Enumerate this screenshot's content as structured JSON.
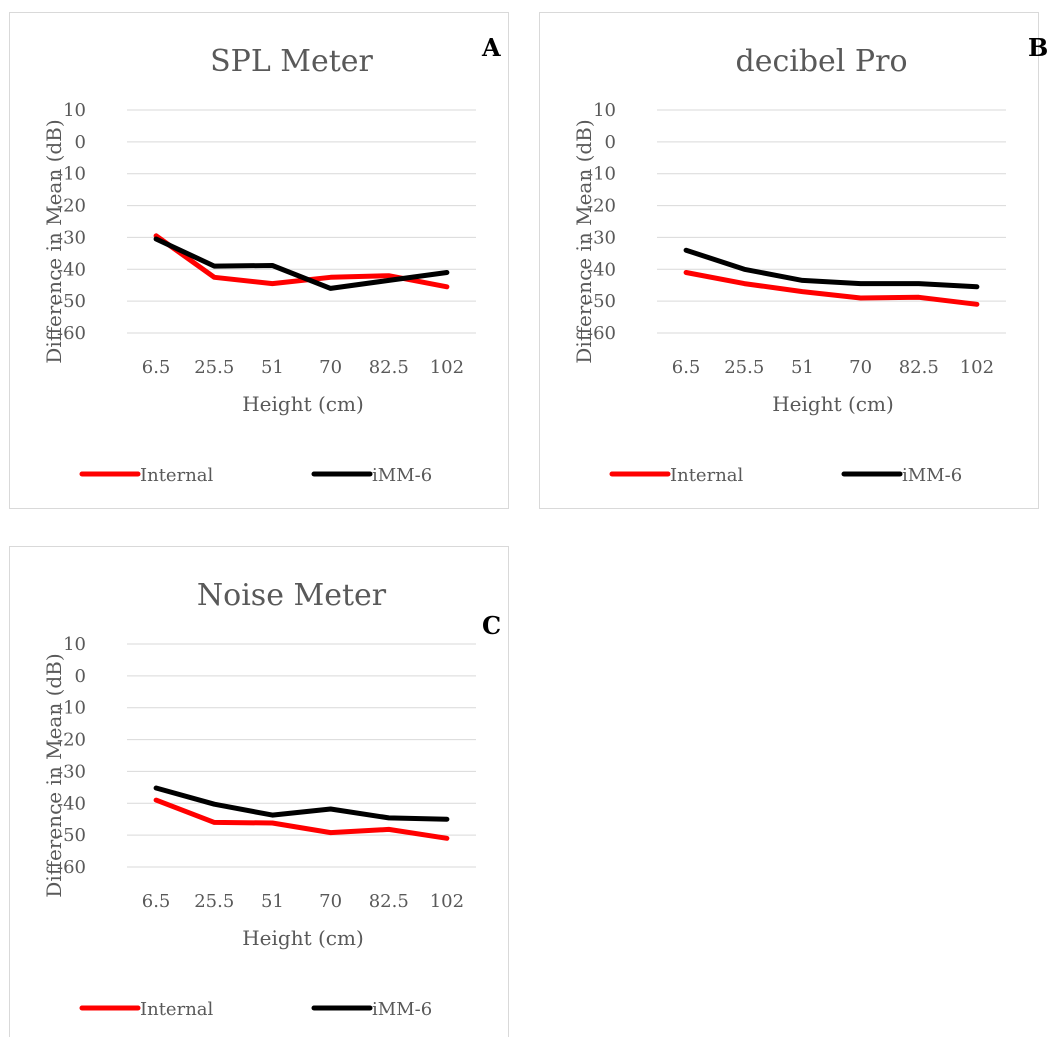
{
  "chart_data": [
    {
      "type": "line",
      "title": "SPL Meter",
      "panel_label": "A",
      "xlabel": "Height (cm)",
      "ylabel": "Difference in Mean (dB)",
      "categories": [
        "6.5",
        "25.5",
        "51",
        "70",
        "82.5",
        "102"
      ],
      "yticks": [
        10,
        0,
        -10,
        -20,
        -30,
        -40,
        -50,
        -60
      ],
      "ylim": [
        -60,
        10
      ],
      "grid": true,
      "legend_position": "bottom",
      "series": [
        {
          "name": "Internal",
          "color": "#ff0000",
          "values": [
            -29.5,
            -42.5,
            -44.5,
            -42.5,
            -42,
            -45.5
          ]
        },
        {
          "name": "iMM-6",
          "color": "#000000",
          "values": [
            -30.5,
            -39,
            -38.8,
            -46,
            -43.5,
            -41
          ]
        }
      ]
    },
    {
      "type": "line",
      "title": "decibel Pro",
      "panel_label": "B",
      "xlabel": "Height (cm)",
      "ylabel": "Difference in Mean (dB)",
      "categories": [
        "6.5",
        "25.5",
        "51",
        "70",
        "82.5",
        "102"
      ],
      "yticks": [
        10,
        0,
        -10,
        -20,
        -30,
        -40,
        -50,
        -60
      ],
      "ylim": [
        -60,
        10
      ],
      "grid": true,
      "legend_position": "bottom",
      "series": [
        {
          "name": "Internal",
          "color": "#ff0000",
          "values": [
            -41,
            -44.5,
            -47,
            -49,
            -48.8,
            -51
          ]
        },
        {
          "name": "iMM-6",
          "color": "#000000",
          "values": [
            -34,
            -40,
            -43.5,
            -44.5,
            -44.5,
            -45.5
          ]
        }
      ]
    },
    {
      "type": "line",
      "title": "Noise Meter",
      "panel_label": "C",
      "xlabel": "Height (cm)",
      "ylabel": "Difference in Mean (dB)",
      "categories": [
        "6.5",
        "25.5",
        "51",
        "70",
        "82.5",
        "102"
      ],
      "yticks": [
        10,
        0,
        -10,
        -20,
        -30,
        -40,
        -50,
        -60
      ],
      "ylim": [
        -60,
        10
      ],
      "grid": true,
      "legend_position": "bottom",
      "series": [
        {
          "name": "Internal",
          "color": "#ff0000",
          "values": [
            -39,
            -46,
            -46.2,
            -49.2,
            -48.2,
            -51
          ]
        },
        {
          "name": "iMM-6",
          "color": "#000000",
          "values": [
            -35.2,
            -40.3,
            -43.7,
            -41.8,
            -44.6,
            -45
          ]
        }
      ]
    }
  ]
}
